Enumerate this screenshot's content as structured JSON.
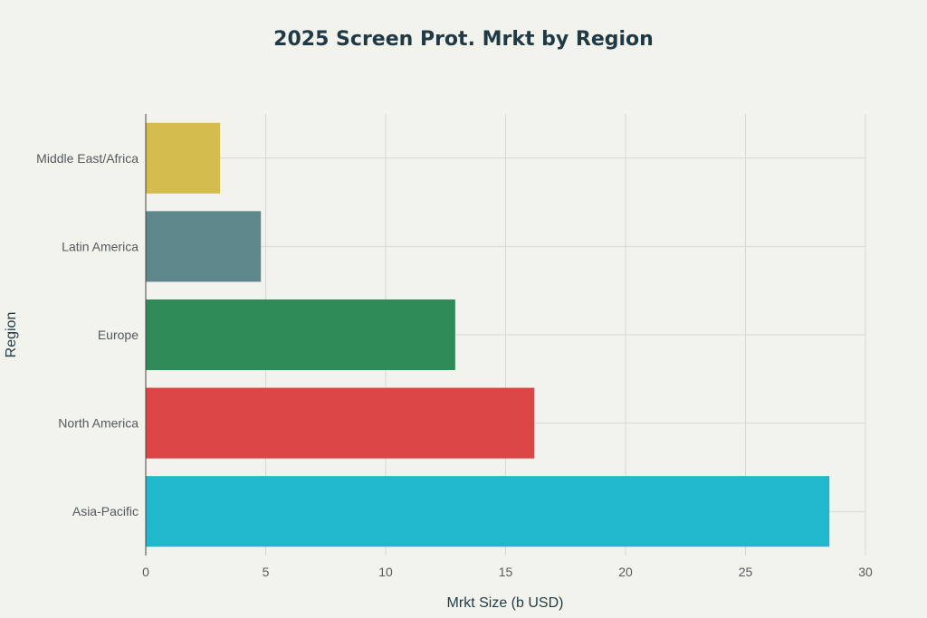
{
  "chart_data": {
    "type": "bar",
    "orientation": "horizontal",
    "title": "2025 Screen Prot. Mrkt by Region",
    "xlabel": "Mrkt Size (b USD)",
    "ylabel": "Region",
    "categories": [
      "Middle East/Africa",
      "Latin America",
      "Europe",
      "North America",
      "Asia-Pacific"
    ],
    "values": [
      3.1,
      4.8,
      12.9,
      16.2,
      28.5
    ],
    "colors": [
      "#d4bc4e",
      "#5e878b",
      "#2e8b57",
      "#db4545",
      "#21b7cc"
    ],
    "xlim": [
      0,
      30
    ],
    "xticks": [
      "0",
      "5",
      "10",
      "15",
      "20",
      "25",
      "30"
    ],
    "grid": true,
    "legend": "none"
  }
}
